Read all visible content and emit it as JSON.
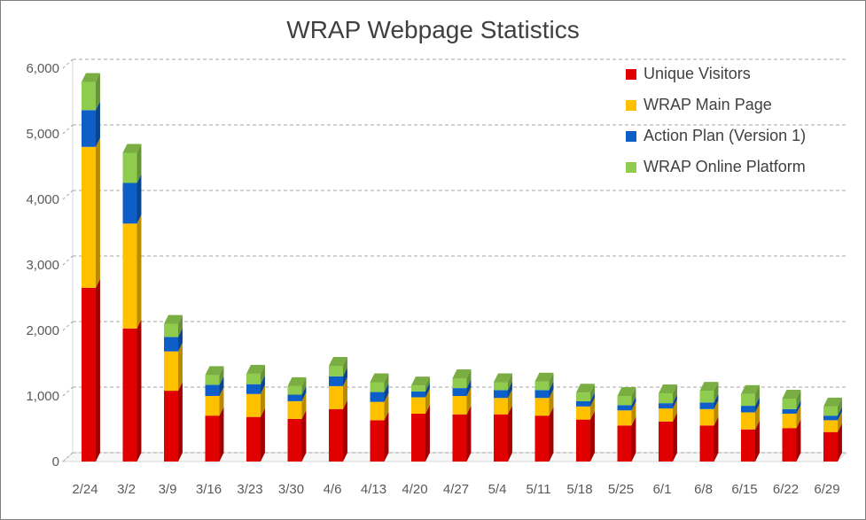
{
  "chart_data": {
    "type": "bar",
    "stacked": true,
    "three_d": true,
    "title": "WRAP Webpage Statistics",
    "xlabel": "",
    "ylabel": "",
    "ylim": [
      0,
      6000
    ],
    "yticks": [
      0,
      1000,
      2000,
      3000,
      4000,
      5000,
      6000
    ],
    "ytick_labels": [
      "0",
      "1,000",
      "2,000",
      "3,000",
      "4,000",
      "5,000",
      "6,000"
    ],
    "grid": true,
    "legend_position": "top-right",
    "categories": [
      "2/24",
      "3/2",
      "3/9",
      "3/16",
      "3/23",
      "3/30",
      "4/6",
      "4/13",
      "4/20",
      "4/27",
      "5/4",
      "5/11",
      "5/18",
      "5/25",
      "6/1",
      "6/8",
      "6/15",
      "6/22",
      "6/29"
    ],
    "series": [
      {
        "name": "Unique Visitors",
        "color": "#e00000",
        "values": [
          2650,
          2030,
          1080,
          700,
          680,
          650,
          800,
          630,
          730,
          720,
          720,
          700,
          640,
          550,
          610,
          550,
          490,
          510,
          450
        ]
      },
      {
        "name": "WRAP Main Page",
        "color": "#ffc000",
        "values": [
          2150,
          1600,
          600,
          300,
          350,
          270,
          350,
          280,
          250,
          280,
          250,
          270,
          200,
          230,
          200,
          250,
          260,
          220,
          180
        ]
      },
      {
        "name": "Action Plan (Version 1)",
        "color": "#0d5fc7",
        "values": [
          560,
          620,
          220,
          170,
          150,
          100,
          150,
          150,
          90,
          120,
          120,
          120,
          80,
          80,
          80,
          100,
          100,
          70,
          70
        ]
      },
      {
        "name": "WRAP Online Platform",
        "color": "#8fcc4e",
        "values": [
          430,
          460,
          200,
          150,
          160,
          130,
          160,
          150,
          90,
          150,
          120,
          130,
          130,
          140,
          150,
          180,
          180,
          160,
          140
        ]
      }
    ]
  }
}
